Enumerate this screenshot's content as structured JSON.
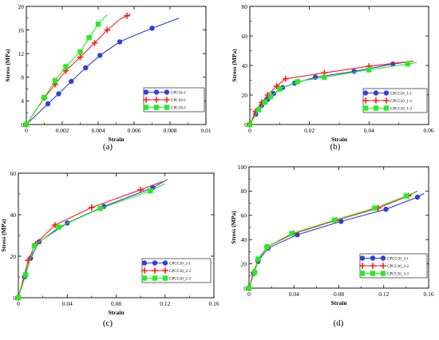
{
  "chart_data": [
    {
      "type": "line",
      "panel_label": "(a)",
      "xlabel": "Strain",
      "ylabel": "Stress (MPa)",
      "xlim": [
        0,
        0.01
      ],
      "ylim": [
        0,
        20
      ],
      "xticks": [
        0,
        0.002,
        0.004,
        0.006,
        0.008,
        0.01
      ],
      "xtick_labels": [
        "0",
        "0.002",
        "0.004",
        "0.006",
        "0.008",
        "0.01"
      ],
      "yticks": [
        0,
        4,
        8,
        12,
        16,
        20
      ],
      "ytick_labels": [
        "0",
        "4",
        "8",
        "12",
        "16",
        "20"
      ],
      "legend_position": "bottom-right",
      "series": [
        {
          "name": "CPC10-1",
          "color": "#2f3fe0",
          "marker": "circle",
          "x": [
            0,
            0.0012,
            0.0018,
            0.0025,
            0.0033,
            0.0041,
            0.0052,
            0.0058,
            0.007,
            0.0085
          ],
          "y": [
            0,
            3.5,
            5.2,
            7.3,
            9.6,
            11.7,
            14.0,
            14.8,
            16.3,
            18.0
          ],
          "marker_x": [
            0,
            0.0012,
            0.0018,
            0.0025,
            0.0033,
            0.0041,
            0.0052,
            0.007
          ],
          "marker_y": [
            0,
            3.5,
            5.2,
            7.3,
            9.6,
            11.7,
            14.0,
            16.3
          ]
        },
        {
          "name": "CPC10-2",
          "color": "#ff1a1a",
          "marker": "plus",
          "x": [
            0,
            0.001,
            0.0016,
            0.0022,
            0.003,
            0.0038,
            0.0045,
            0.0052,
            0.0056,
            0.0058
          ],
          "y": [
            0,
            4.5,
            6.8,
            9.1,
            11.4,
            13.8,
            16.0,
            17.8,
            18.4,
            18.7
          ],
          "marker_x": [
            0,
            0.001,
            0.0016,
            0.0022,
            0.003,
            0.0038,
            0.0045,
            0.0056
          ],
          "marker_y": [
            0,
            4.5,
            6.8,
            9.1,
            11.4,
            13.8,
            16.0,
            18.4
          ]
        },
        {
          "name": "CPC10-3",
          "color": "#22ee22",
          "marker": "square",
          "x": [
            0,
            0.001,
            0.0016,
            0.0022,
            0.003,
            0.0035,
            0.004,
            0.0045
          ],
          "y": [
            0,
            4.6,
            7.4,
            9.8,
            12.3,
            14.7,
            17.0,
            18.6
          ],
          "marker_x": [
            0,
            0.001,
            0.0016,
            0.0022,
            0.003,
            0.0035,
            0.004
          ],
          "marker_y": [
            0,
            4.6,
            7.4,
            9.8,
            12.3,
            14.7,
            17.0
          ]
        }
      ]
    },
    {
      "type": "line",
      "panel_label": "(b)",
      "xlabel": "Strain",
      "ylabel": "Stress (MPa)",
      "xlim": [
        0,
        0.06
      ],
      "ylim": [
        0,
        80
      ],
      "xticks": [
        0,
        0.02,
        0.04,
        0.06
      ],
      "xtick_labels": [
        "0",
        "0.02",
        "0.04",
        "0.06"
      ],
      "yticks": [
        0,
        20,
        40,
        60,
        80
      ],
      "ytick_labels": [
        "0",
        "20",
        "40",
        "60",
        "80"
      ],
      "legend_position": "bottom-right",
      "series": [
        {
          "name": "CPCC10_1-1",
          "color": "#2f3fe0",
          "marker": "circle",
          "x": [
            0,
            0.002,
            0.004,
            0.006,
            0.008,
            0.011,
            0.015,
            0.022,
            0.035,
            0.048,
            0.055
          ],
          "y": [
            0,
            7,
            13,
            17,
            21,
            25,
            28,
            32,
            36,
            41,
            43
          ],
          "marker_x": [
            0,
            0.002,
            0.004,
            0.006,
            0.008,
            0.011,
            0.015,
            0.022,
            0.035,
            0.048
          ],
          "marker_y": [
            0,
            7,
            13,
            17,
            21,
            25,
            28,
            32,
            36,
            41
          ]
        },
        {
          "name": "CPCC10_1-2",
          "color": "#ff1a1a",
          "marker": "plus",
          "x": [
            0,
            0.002,
            0.004,
            0.006,
            0.009,
            0.012,
            0.025,
            0.04,
            0.055
          ],
          "y": [
            0,
            9,
            15,
            20,
            26,
            31,
            35,
            39.5,
            43
          ],
          "marker_x": [
            0,
            0.002,
            0.004,
            0.006,
            0.009,
            0.012,
            0.025,
            0.04
          ],
          "marker_y": [
            0,
            9,
            15,
            20,
            26,
            31,
            35,
            39.5
          ]
        },
        {
          "name": "CPCC10_1-3",
          "color": "#22ee22",
          "marker": "square",
          "x": [
            0,
            0.003,
            0.005,
            0.007,
            0.01,
            0.016,
            0.025,
            0.04,
            0.053,
            0.056
          ],
          "y": [
            0,
            10,
            15,
            19,
            24,
            29,
            32,
            37,
            41,
            42
          ],
          "marker_x": [
            0,
            0.003,
            0.005,
            0.007,
            0.01,
            0.016,
            0.025,
            0.04,
            0.053
          ],
          "marker_y": [
            0,
            10,
            15,
            19,
            24,
            29,
            32,
            37,
            41
          ]
        }
      ]
    },
    {
      "type": "line",
      "panel_label": "(c)",
      "xlabel": "Strain",
      "ylabel": "Stress (MPa)",
      "xlim": [
        0,
        0.16
      ],
      "ylim": [
        0,
        60
      ],
      "xticks": [
        0,
        0.04,
        0.08,
        0.12,
        0.16
      ],
      "xtick_labels": [
        "0",
        "0.04",
        "0.08",
        "0.12",
        "0.16"
      ],
      "yticks": [
        0,
        20,
        40,
        60
      ],
      "ytick_labels": [
        "0",
        "20",
        "40",
        "60"
      ],
      "legend_position": "bottom-right",
      "series": [
        {
          "name": "CPCC10_2-1",
          "color": "#2f3fe0",
          "marker": "circle",
          "x": [
            0,
            0.005,
            0.01,
            0.017,
            0.04,
            0.07,
            0.11,
            0.122
          ],
          "y": [
            0,
            10,
            19,
            27,
            36,
            44,
            53,
            57
          ],
          "marker_x": [
            0,
            0.005,
            0.01,
            0.017,
            0.04,
            0.07,
            0.11
          ],
          "marker_y": [
            0,
            10,
            19,
            27,
            36,
            44,
            53
          ]
        },
        {
          "name": "CPCC10_2-2",
          "color": "#ff1a1a",
          "marker": "plus",
          "x": [
            0,
            0.008,
            0.014,
            0.03,
            0.06,
            0.1,
            0.118
          ],
          "y": [
            0,
            18,
            26,
            35,
            43.5,
            52,
            56
          ],
          "marker_x": [
            0,
            0.008,
            0.014,
            0.03,
            0.06,
            0.1
          ],
          "marker_y": [
            0,
            18,
            26,
            35,
            43.5,
            52
          ]
        },
        {
          "name": "CPCC10_2-3",
          "color": "#22ee22",
          "marker": "square",
          "x": [
            0,
            0.006,
            0.013,
            0.033,
            0.067,
            0.108,
            0.12
          ],
          "y": [
            0,
            11,
            25,
            34,
            43,
            51.5,
            55
          ],
          "marker_x": [
            0,
            0.006,
            0.013,
            0.033,
            0.067,
            0.108
          ],
          "marker_y": [
            0,
            11,
            25,
            34,
            43,
            51.5
          ]
        }
      ]
    },
    {
      "type": "line",
      "panel_label": "(d)",
      "xlabel": "Strain",
      "ylabel": "Stress (MPa)",
      "xlim": [
        0,
        0.16
      ],
      "ylim": [
        0,
        100
      ],
      "xticks": [
        0,
        0.04,
        0.08,
        0.12,
        0.16
      ],
      "xtick_labels": [
        "0",
        "0.04",
        "0.08",
        "0.12",
        "0.16"
      ],
      "yticks": [
        0,
        20,
        40,
        60,
        80,
        100
      ],
      "ytick_labels": [
        "0",
        "20",
        "40",
        "60",
        "80",
        "100"
      ],
      "legend_position": "bottom-right",
      "series": [
        {
          "name": "CPCC10_3-1",
          "color": "#2f3fe0",
          "marker": "circle",
          "x": [
            0,
            0.004,
            0.008,
            0.017,
            0.043,
            0.082,
            0.122,
            0.15,
            0.156
          ],
          "y": [
            0,
            12,
            22,
            33,
            44,
            55,
            65,
            75,
            78
          ],
          "marker_x": [
            0,
            0.004,
            0.008,
            0.017,
            0.043,
            0.082,
            0.122,
            0.15
          ],
          "marker_y": [
            0,
            12,
            22,
            33,
            44,
            55,
            65,
            75
          ]
        },
        {
          "name": "CPCC10_3-2",
          "color": "#ff1a1a",
          "marker": "plus",
          "x": [
            0,
            0.004,
            0.008,
            0.016,
            0.04,
            0.078,
            0.115,
            0.142,
            0.15
          ],
          "y": [
            0,
            13,
            23,
            34,
            45,
            56,
            66,
            76,
            80
          ],
          "marker_x": [
            0,
            0.004,
            0.008,
            0.016,
            0.04,
            0.078,
            0.115,
            0.142
          ],
          "marker_y": [
            0,
            13,
            23,
            34,
            45,
            56,
            66,
            76
          ]
        },
        {
          "name": "CPCC10_3-3",
          "color": "#22ee22",
          "marker": "square",
          "x": [
            0,
            0.005,
            0.008,
            0.016,
            0.038,
            0.076,
            0.112,
            0.14,
            0.148
          ],
          "y": [
            0,
            13,
            24,
            34,
            45,
            56,
            66,
            76,
            79
          ],
          "marker_x": [
            0,
            0.005,
            0.008,
            0.016,
            0.038,
            0.076,
            0.112,
            0.14
          ],
          "marker_y": [
            0,
            13,
            24,
            34,
            45,
            56,
            66,
            76
          ]
        }
      ]
    }
  ]
}
